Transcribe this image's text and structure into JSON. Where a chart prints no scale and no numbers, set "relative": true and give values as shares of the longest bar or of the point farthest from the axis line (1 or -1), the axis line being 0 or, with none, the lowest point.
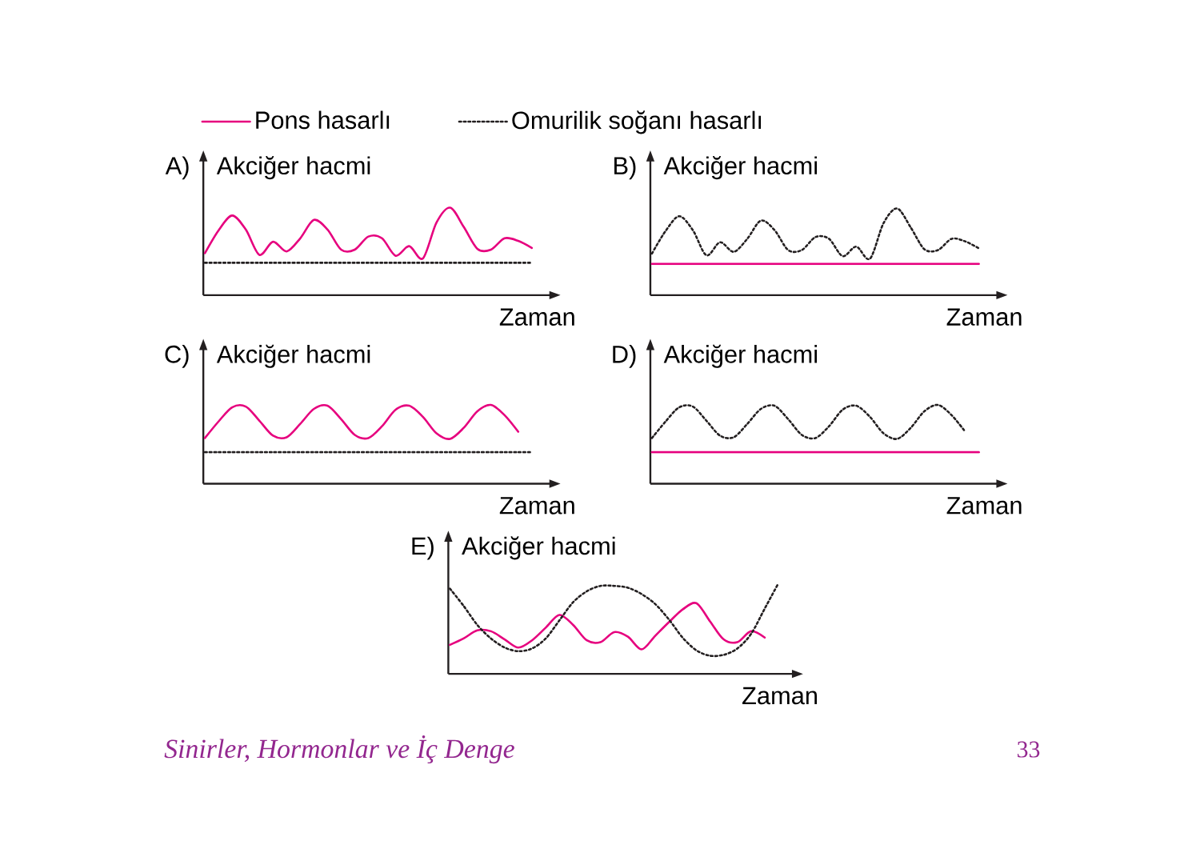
{
  "chart_data": [
    {
      "type": "line",
      "title": "A)",
      "ylabel": "Akciğer hacmi",
      "xlabel": "Zaman",
      "relative": true,
      "legend": "top",
      "categories": [
        null,
        null,
        null,
        null,
        null,
        null,
        null,
        null,
        null,
        null,
        null,
        null,
        null,
        null,
        null,
        null,
        null,
        null,
        null,
        null,
        null,
        null,
        null,
        null,
        null
      ],
      "series": [
        {
          "name": "Pons hasarlı",
          "color": "#e6007e",
          "line_style": "solid",
          "values": [
            0.48,
            0.74,
            0.91,
            0.75,
            0.46,
            0.61,
            0.5,
            0.65,
            0.86,
            0.75,
            0.52,
            0.52,
            0.67,
            0.65,
            0.45,
            0.56,
            0.42,
            0.83,
            1,
            0.78,
            0.53,
            0.52,
            0.65,
            0.62,
            0.54
          ]
        },
        {
          "name": "Omurilik soğanı hasarlı",
          "color": "#231f20",
          "line_style": "dotted",
          "values": [
            0.37,
            0.37,
            0.37,
            0.37,
            0.37,
            0.37,
            0.37,
            0.37,
            0.37,
            0.37,
            0.37,
            0.37,
            0.37,
            0.37,
            0.37,
            0.37,
            0.37,
            0.37,
            0.37,
            0.37,
            0.37,
            0.37,
            0.37,
            0.37,
            0.37
          ]
        }
      ]
    },
    {
      "type": "line",
      "title": "B)",
      "ylabel": "Akciğer hacmi",
      "xlabel": "Zaman",
      "relative": true,
      "categories": [
        null,
        null,
        null,
        null,
        null,
        null,
        null,
        null,
        null,
        null,
        null,
        null,
        null,
        null,
        null,
        null,
        null,
        null,
        null,
        null,
        null,
        null,
        null,
        null,
        null
      ],
      "series": [
        {
          "color": "#e6007e",
          "line_style": "solid",
          "values": [
            0.36,
            0.36,
            0.36,
            0.36,
            0.36,
            0.36,
            0.36,
            0.36,
            0.36,
            0.36,
            0.36,
            0.36,
            0.36,
            0.36,
            0.36,
            0.36,
            0.36,
            0.36,
            0.36,
            0.36,
            0.36,
            0.36,
            0.36,
            0.36,
            0.36
          ]
        },
        {
          "color": "#231f20",
          "line_style": "dotted",
          "values": [
            0.48,
            0.74,
            0.91,
            0.75,
            0.46,
            0.61,
            0.5,
            0.65,
            0.86,
            0.75,
            0.52,
            0.52,
            0.67,
            0.65,
            0.45,
            0.56,
            0.42,
            0.83,
            1,
            0.78,
            0.53,
            0.52,
            0.65,
            0.62,
            0.54
          ]
        }
      ]
    },
    {
      "type": "line",
      "title": "C)",
      "ylabel": "Akciğer hacmi",
      "xlabel": "Zaman",
      "relative": true,
      "categories": [
        null,
        null,
        null,
        null,
        null,
        null,
        null,
        null,
        null,
        null,
        null,
        null,
        null,
        null,
        null,
        null,
        null,
        null,
        null,
        null,
        null,
        null,
        null,
        null,
        null
      ],
      "series": [
        {
          "color": "#e6007e",
          "line_style": "solid",
          "values": [
            0.58,
            0.79,
            0.97,
            0.98,
            0.8,
            0.61,
            0.59,
            0.76,
            0.95,
            0.99,
            0.82,
            0.62,
            0.58,
            0.73,
            0.94,
            0.99,
            0.85,
            0.64,
            0.57,
            0.71,
            0.92,
            1,
            0.87,
            0.66,
            null
          ]
        },
        {
          "color": "#231f20",
          "line_style": "dotted",
          "values": [
            0.4,
            0.4,
            0.4,
            0.4,
            0.4,
            0.4,
            0.4,
            0.4,
            0.4,
            0.4,
            0.4,
            0.4,
            0.4,
            0.4,
            0.4,
            0.4,
            0.4,
            0.4,
            0.4,
            0.4,
            0.4,
            0.4,
            0.4,
            0.4,
            0.4
          ]
        }
      ]
    },
    {
      "type": "line",
      "title": "D)",
      "ylabel": "Akciğer hacmi",
      "xlabel": "Zaman",
      "relative": true,
      "categories": [
        null,
        null,
        null,
        null,
        null,
        null,
        null,
        null,
        null,
        null,
        null,
        null,
        null,
        null,
        null,
        null,
        null,
        null,
        null,
        null,
        null,
        null,
        null,
        null,
        null
      ],
      "series": [
        {
          "color": "#e6007e",
          "line_style": "solid",
          "values": [
            0.4,
            0.4,
            0.4,
            0.4,
            0.4,
            0.4,
            0.4,
            0.4,
            0.4,
            0.4,
            0.4,
            0.4,
            0.4,
            0.4,
            0.4,
            0.4,
            0.4,
            0.4,
            0.4,
            0.4,
            0.4,
            0.4,
            0.4,
            0.4,
            0.4
          ]
        },
        {
          "color": "#231f20",
          "line_style": "dotted",
          "values": [
            0.58,
            0.79,
            0.97,
            0.98,
            0.8,
            0.61,
            0.59,
            0.76,
            0.95,
            0.99,
            0.82,
            0.62,
            0.58,
            0.73,
            0.94,
            0.99,
            0.85,
            0.64,
            0.57,
            0.71,
            0.92,
            1,
            0.87,
            0.66,
            null
          ]
        }
      ]
    },
    {
      "type": "line",
      "title": "E)",
      "ylabel": "Akciğer hacmi",
      "xlabel": "Zaman",
      "relative": true,
      "categories": [
        null,
        null,
        null,
        null,
        null,
        null,
        null,
        null,
        null,
        null,
        null,
        null,
        null,
        null,
        null,
        null,
        null,
        null,
        null,
        null,
        null,
        null,
        null,
        null,
        null
      ],
      "annotations": [
        "Sinirler, Hormonlar ve İç Denge",
        "33"
      ],
      "series": [
        {
          "color": "#e6007e",
          "line_style": "solid",
          "values": [
            0.32,
            0.39,
            0.48,
            0.47,
            0.38,
            0.29,
            0.37,
            0.51,
            0.65,
            0.54,
            0.37,
            0.35,
            0.46,
            0.41,
            0.27,
            0.42,
            0.57,
            0.71,
            0.78,
            0.58,
            0.38,
            0.35,
            0.47,
            0.4,
            null
          ]
        },
        {
          "color": "#231f20",
          "line_style": "dotted",
          "values": [
            0.94,
            0.75,
            0.54,
            0.39,
            0.29,
            0.25,
            0.28,
            0.39,
            0.59,
            0.79,
            0.91,
            0.97,
            0.97,
            0.95,
            0.88,
            0.77,
            0.6,
            0.4,
            0.26,
            0.2,
            0.21,
            0.28,
            0.44,
            0.72,
            1
          ]
        }
      ]
    }
  ]
}
